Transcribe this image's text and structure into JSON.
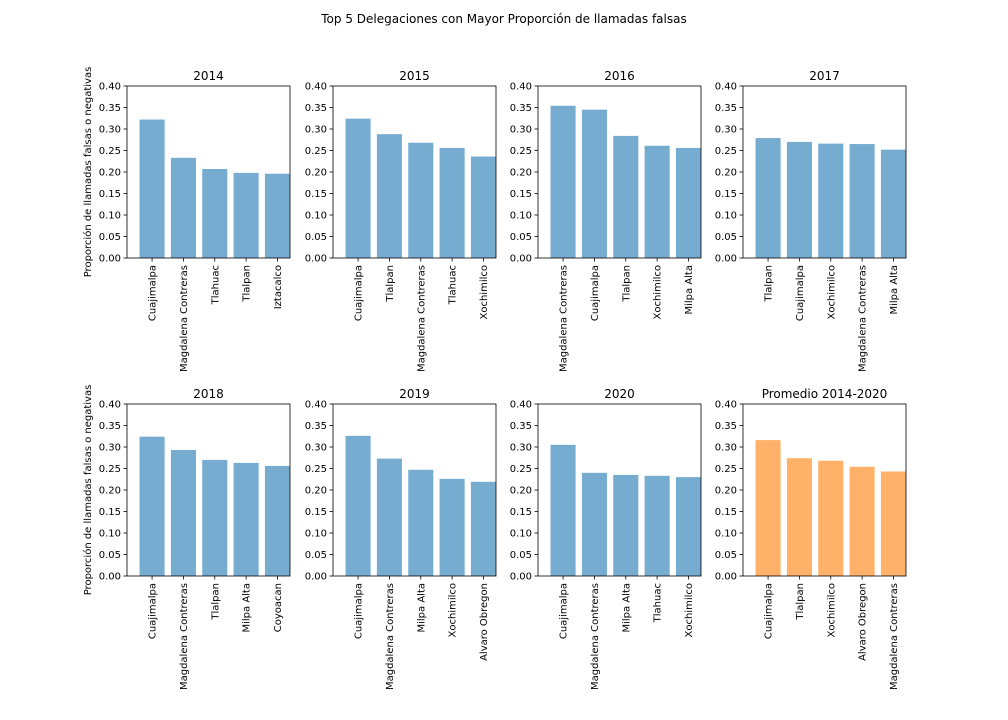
{
  "figure_title": "Top 5 Delegaciones con Mayor Proporción de llamadas falsas",
  "chart_data": [
    {
      "type": "bar",
      "title": "2014",
      "ylabel": "Proporción de llamadas falsas o negativas",
      "categories": [
        "Cuajimalpa",
        "Magdalena Contreras",
        "Tlahuac",
        "Tlalpan",
        "Iztacalco"
      ],
      "values": [
        0.322,
        0.233,
        0.207,
        0.198,
        0.196
      ],
      "ylim": [
        0,
        0.4
      ],
      "yticks": [
        "0.00",
        "0.05",
        "0.10",
        "0.15",
        "0.20",
        "0.25",
        "0.30",
        "0.35",
        "0.40"
      ],
      "color": "#77acd1"
    },
    {
      "type": "bar",
      "title": "2015",
      "ylabel": "",
      "categories": [
        "Cuajimalpa",
        "Tlalpan",
        "Magdalena Contreras",
        "Tlahuac",
        "Xochimilco"
      ],
      "values": [
        0.324,
        0.288,
        0.268,
        0.256,
        0.236
      ],
      "ylim": [
        0,
        0.4
      ],
      "yticks": [
        "0.00",
        "0.05",
        "0.10",
        "0.15",
        "0.20",
        "0.25",
        "0.30",
        "0.35",
        "0.40"
      ],
      "color": "#77acd1"
    },
    {
      "type": "bar",
      "title": "2016",
      "ylabel": "",
      "categories": [
        "Magdalena Contreras",
        "Cuajimalpa",
        "Tlalpan",
        "Xochimilco",
        "Milpa Alta"
      ],
      "values": [
        0.354,
        0.345,
        0.284,
        0.261,
        0.256
      ],
      "ylim": [
        0,
        0.4
      ],
      "yticks": [
        "0.00",
        "0.05",
        "0.10",
        "0.15",
        "0.20",
        "0.25",
        "0.30",
        "0.35",
        "0.40"
      ],
      "color": "#77acd1"
    },
    {
      "type": "bar",
      "title": "2017",
      "ylabel": "",
      "categories": [
        "Tlalpan",
        "Cuajimalpa",
        "Xochimilco",
        "Magdalena Contreras",
        "Milpa Alta"
      ],
      "values": [
        0.279,
        0.27,
        0.266,
        0.265,
        0.252
      ],
      "ylim": [
        0,
        0.4
      ],
      "yticks": [
        "0.00",
        "0.05",
        "0.10",
        "0.15",
        "0.20",
        "0.25",
        "0.30",
        "0.35",
        "0.40"
      ],
      "color": "#77acd1"
    },
    {
      "type": "bar",
      "title": "2018",
      "ylabel": "Proporción de llamadas falsas o negativas",
      "categories": [
        "Cuajimalpa",
        "Magdalena Contreras",
        "Tlalpan",
        "Milpa Alta",
        "Coyoacan"
      ],
      "values": [
        0.324,
        0.293,
        0.27,
        0.263,
        0.256
      ],
      "ylim": [
        0,
        0.4
      ],
      "yticks": [
        "0.00",
        "0.05",
        "0.10",
        "0.15",
        "0.20",
        "0.25",
        "0.30",
        "0.35",
        "0.40"
      ],
      "color": "#77acd1"
    },
    {
      "type": "bar",
      "title": "2019",
      "ylabel": "",
      "categories": [
        "Cuajimalpa",
        "Magdalena Contreras",
        "Milpa Alta",
        "Xochimilco",
        "Alvaro Obregon"
      ],
      "values": [
        0.326,
        0.273,
        0.247,
        0.226,
        0.219
      ],
      "ylim": [
        0,
        0.4
      ],
      "yticks": [
        "0.00",
        "0.05",
        "0.10",
        "0.15",
        "0.20",
        "0.25",
        "0.30",
        "0.35",
        "0.40"
      ],
      "color": "#77acd1"
    },
    {
      "type": "bar",
      "title": "2020",
      "ylabel": "",
      "categories": [
        "Cuajimalpa",
        "Magdalena Contreras",
        "Milpa Alta",
        "Tlahuac",
        "Xochimilco"
      ],
      "values": [
        0.305,
        0.24,
        0.235,
        0.233,
        0.23
      ],
      "ylim": [
        0,
        0.4
      ],
      "yticks": [
        "0.00",
        "0.05",
        "0.10",
        "0.15",
        "0.20",
        "0.25",
        "0.30",
        "0.35",
        "0.40"
      ],
      "color": "#77acd1"
    },
    {
      "type": "bar",
      "title": "Promedio 2014-2020",
      "ylabel": "",
      "categories": [
        "Cuajimalpa",
        "Tlalpan",
        "Xochimilco",
        "Alvaro Obregon",
        "Magdalena Contreras"
      ],
      "values": [
        0.316,
        0.274,
        0.268,
        0.254,
        0.243
      ],
      "ylim": [
        0,
        0.4
      ],
      "yticks": [
        "0.00",
        "0.05",
        "0.10",
        "0.15",
        "0.20",
        "0.25",
        "0.30",
        "0.35",
        "0.40"
      ],
      "color": "#ffb16a"
    }
  ]
}
